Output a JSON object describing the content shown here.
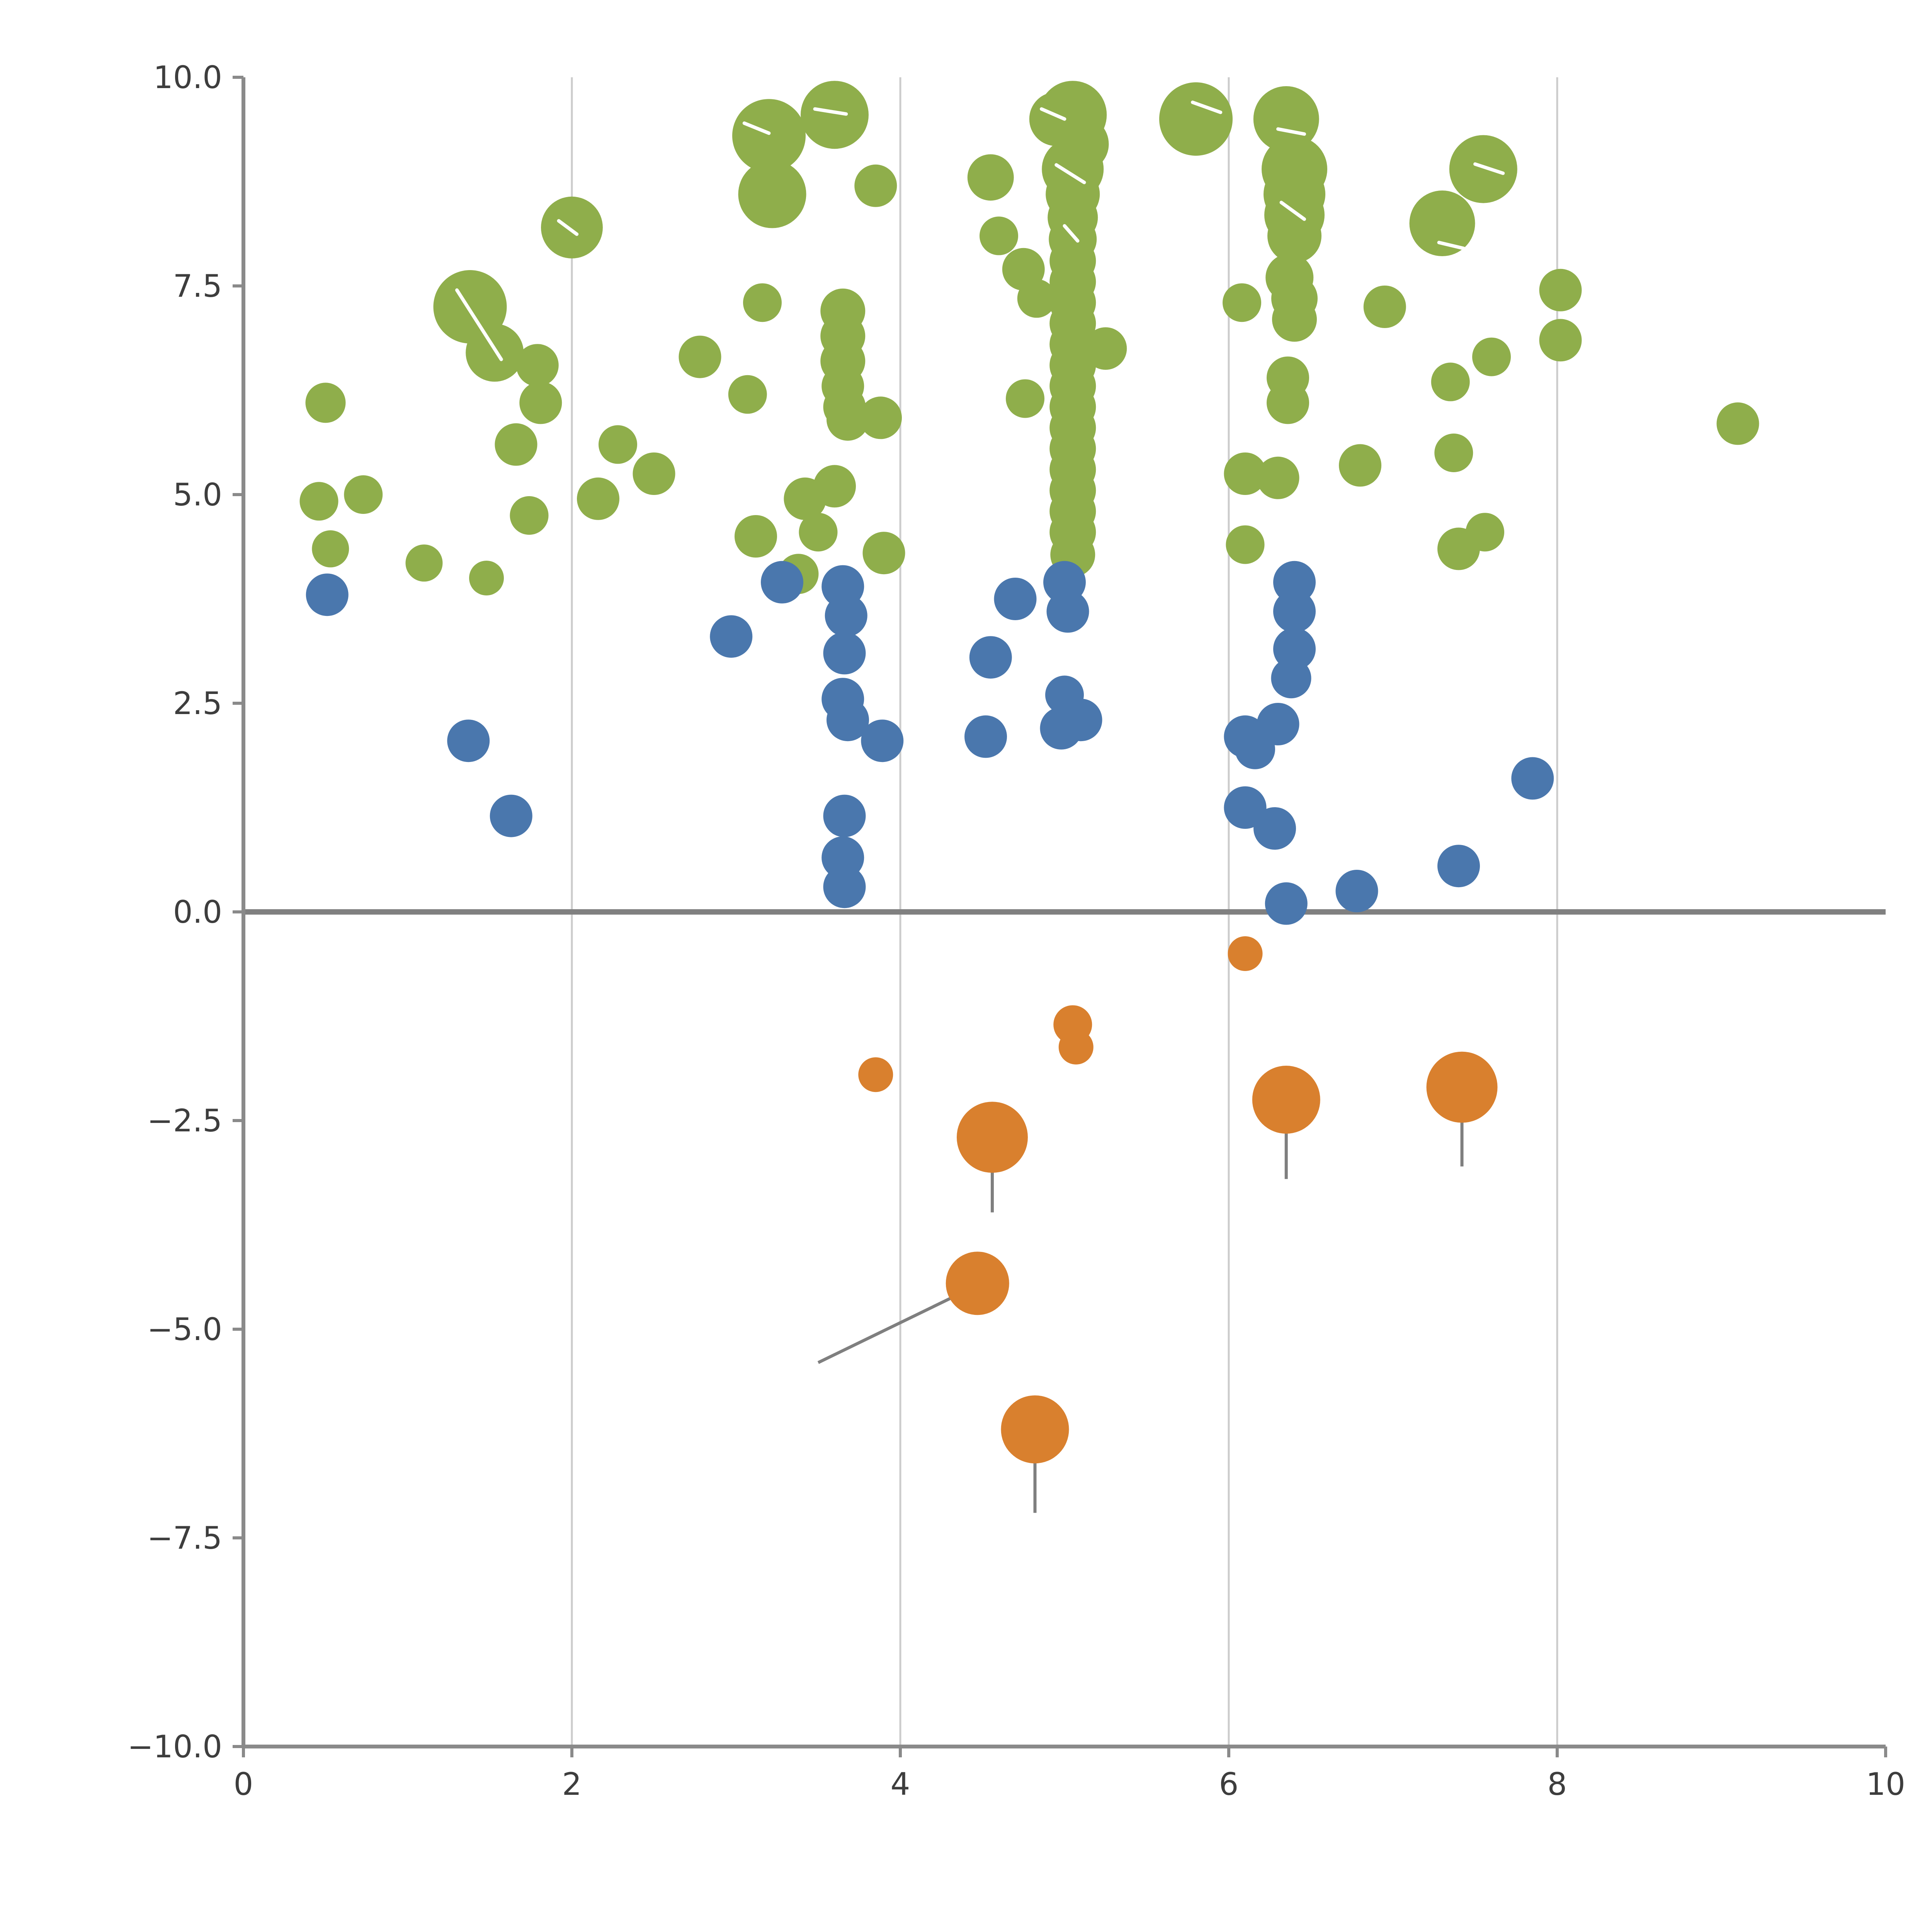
{
  "chart_data": {
    "type": "scatter",
    "title": "",
    "xlabel": "",
    "ylabel": "",
    "xlim": [
      0,
      10
    ],
    "ylim": [
      -10,
      10
    ],
    "x_tick_values": [
      0,
      2,
      4,
      6,
      8,
      10
    ],
    "x_tick_labels": [
      "0",
      "2",
      "4",
      "6",
      "8",
      "10"
    ],
    "y_tick_values": [
      -10,
      -7.5,
      -5,
      -2.5,
      0,
      2.5,
      5,
      7.5,
      10
    ],
    "y_tick_labels": [
      "−10.0",
      "−7.5",
      "−5.0",
      "−2.5",
      "0.0",
      "2.5",
      "5.0",
      "7.5",
      "10.0"
    ],
    "grid": {
      "vertical_at": [
        2,
        4,
        6,
        8
      ],
      "color": "#cccccc"
    },
    "zero_line": {
      "y": 0,
      "color": "#808080"
    },
    "axis_color": "#8a8a8a",
    "segment_color": "#7f7f7f",
    "white_mark_color": "#ffffff",
    "legend": null,
    "series": [
      {
        "name": "green",
        "color": "#8fae4b",
        "points": [
          [
            0.5,
            6.1,
            52
          ],
          [
            0.46,
            4.92,
            50
          ],
          [
            0.53,
            4.35,
            48
          ],
          [
            0.73,
            5.0,
            50
          ],
          [
            1.1,
            4.18,
            48
          ],
          [
            1.38,
            7.25,
            95
          ],
          [
            1.53,
            6.7,
            75
          ],
          [
            1.48,
            4.0,
            45
          ],
          [
            1.66,
            5.6,
            55
          ],
          [
            1.79,
            6.55,
            55
          ],
          [
            1.81,
            6.1,
            55
          ],
          [
            1.74,
            4.75,
            50
          ],
          [
            2.0,
            8.2,
            80
          ],
          [
            2.16,
            4.95,
            55
          ],
          [
            2.28,
            5.6,
            50
          ],
          [
            2.5,
            5.25,
            55
          ],
          [
            2.78,
            6.65,
            55
          ],
          [
            3.07,
            6.2,
            50
          ],
          [
            3.16,
            7.3,
            50
          ],
          [
            3.12,
            4.5,
            55
          ],
          [
            3.2,
            9.3,
            95
          ],
          [
            3.22,
            8.6,
            88
          ],
          [
            3.6,
            9.55,
            88
          ],
          [
            3.85,
            8.7,
            55
          ],
          [
            3.38,
            4.05,
            52
          ],
          [
            3.42,
            4.95,
            55
          ],
          [
            3.5,
            4.55,
            50
          ],
          [
            3.65,
            7.2,
            58
          ],
          [
            3.65,
            6.9,
            58
          ],
          [
            3.65,
            6.6,
            58
          ],
          [
            3.65,
            6.3,
            55
          ],
          [
            3.66,
            6.05,
            55
          ],
          [
            3.68,
            5.9,
            55
          ],
          [
            3.6,
            5.1,
            55
          ],
          [
            3.88,
            5.92,
            55
          ],
          [
            3.9,
            4.3,
            55
          ],
          [
            4.55,
            8.8,
            60
          ],
          [
            4.6,
            8.1,
            50
          ],
          [
            4.75,
            7.7,
            55
          ],
          [
            4.83,
            7.35,
            50
          ],
          [
            4.76,
            6.15,
            50
          ],
          [
            4.95,
            9.5,
            70
          ],
          [
            5.05,
            9.55,
            88
          ],
          [
            5.1,
            9.2,
            72
          ],
          [
            5.05,
            8.9,
            80
          ],
          [
            5.05,
            8.6,
            70
          ],
          [
            5.05,
            8.32,
            65
          ],
          [
            5.05,
            8.06,
            62
          ],
          [
            5.05,
            7.8,
            60
          ],
          [
            5.05,
            7.55,
            60
          ],
          [
            5.05,
            7.3,
            60
          ],
          [
            5.05,
            7.05,
            60
          ],
          [
            5.05,
            6.8,
            60
          ],
          [
            5.05,
            6.55,
            60
          ],
          [
            5.05,
            6.3,
            60
          ],
          [
            5.05,
            6.05,
            60
          ],
          [
            5.05,
            5.8,
            60
          ],
          [
            5.05,
            5.55,
            60
          ],
          [
            5.05,
            5.3,
            60
          ],
          [
            5.05,
            5.05,
            60
          ],
          [
            5.05,
            4.8,
            60
          ],
          [
            5.05,
            4.55,
            60
          ],
          [
            5.05,
            4.28,
            58
          ],
          [
            5.25,
            6.75,
            55
          ],
          [
            5.8,
            9.5,
            95
          ],
          [
            6.35,
            9.5,
            85
          ],
          [
            6.4,
            8.9,
            85
          ],
          [
            6.4,
            8.6,
            80
          ],
          [
            6.4,
            8.35,
            78
          ],
          [
            6.4,
            8.1,
            70
          ],
          [
            6.37,
            7.6,
            62
          ],
          [
            6.4,
            7.35,
            60
          ],
          [
            6.4,
            7.1,
            58
          ],
          [
            6.36,
            6.4,
            55
          ],
          [
            6.36,
            6.1,
            55
          ],
          [
            6.08,
            7.3,
            50
          ],
          [
            6.1,
            5.25,
            55
          ],
          [
            6.3,
            5.2,
            55
          ],
          [
            6.1,
            4.4,
            50
          ],
          [
            6.8,
            5.35,
            55
          ],
          [
            6.95,
            7.25,
            55
          ],
          [
            7.3,
            8.25,
            85
          ],
          [
            7.55,
            8.9,
            88
          ],
          [
            7.35,
            6.35,
            50
          ],
          [
            7.37,
            5.5,
            50
          ],
          [
            7.4,
            4.35,
            55
          ],
          [
            7.56,
            4.55,
            50
          ],
          [
            7.6,
            6.65,
            50
          ],
          [
            8.02,
            7.45,
            55
          ],
          [
            8.02,
            6.85,
            55
          ],
          [
            9.1,
            5.85,
            55
          ]
        ]
      },
      {
        "name": "blue",
        "color": "#4a77ad",
        "points": [
          [
            0.51,
            3.8,
            55
          ],
          [
            1.37,
            2.05,
            55
          ],
          [
            1.63,
            1.15,
            55
          ],
          [
            2.97,
            3.3,
            55
          ],
          [
            3.28,
            3.95,
            55
          ],
          [
            3.65,
            3.9,
            55
          ],
          [
            3.67,
            3.55,
            55
          ],
          [
            3.66,
            3.1,
            55
          ],
          [
            3.65,
            2.55,
            55
          ],
          [
            3.68,
            2.3,
            55
          ],
          [
            3.66,
            1.15,
            55
          ],
          [
            3.65,
            0.65,
            55
          ],
          [
            3.66,
            0.3,
            55
          ],
          [
            3.89,
            2.05,
            55
          ],
          [
            4.7,
            3.75,
            55
          ],
          [
            4.55,
            3.05,
            55
          ],
          [
            4.52,
            2.1,
            55
          ],
          [
            5.0,
            3.95,
            55
          ],
          [
            5.02,
            3.6,
            55
          ],
          [
            5.0,
            2.6,
            50
          ],
          [
            4.98,
            2.2,
            55
          ],
          [
            5.1,
            2.3,
            55
          ],
          [
            6.1,
            2.1,
            55
          ],
          [
            6.16,
            1.95,
            52
          ],
          [
            6.3,
            2.25,
            55
          ],
          [
            6.4,
            3.95,
            55
          ],
          [
            6.4,
            3.6,
            55
          ],
          [
            6.4,
            3.15,
            55
          ],
          [
            6.38,
            2.8,
            52
          ],
          [
            6.1,
            1.25,
            55
          ],
          [
            6.28,
            1.0,
            55
          ],
          [
            6.35,
            0.1,
            55
          ],
          [
            6.78,
            0.25,
            55
          ],
          [
            7.4,
            0.55,
            55
          ],
          [
            7.85,
            1.6,
            55
          ]
        ]
      },
      {
        "name": "orange",
        "color": "#d9802e",
        "points": [
          [
            6.1,
            -0.5,
            45
          ],
          [
            5.05,
            -1.35,
            50
          ],
          [
            5.07,
            -1.62,
            45
          ],
          [
            3.85,
            -1.95,
            45
          ],
          [
            4.56,
            -2.7,
            92
          ],
          [
            6.35,
            -2.25,
            88
          ],
          [
            7.42,
            -2.1,
            92
          ],
          [
            4.47,
            -4.45,
            82
          ],
          [
            4.82,
            -6.2,
            88
          ]
        ]
      }
    ],
    "segments": [
      [
        4.56,
        -2.95,
        4.56,
        -3.6
      ],
      [
        6.35,
        -2.45,
        6.35,
        -3.2
      ],
      [
        7.42,
        -2.35,
        7.42,
        -3.05
      ],
      [
        4.82,
        -6.45,
        4.82,
        -7.2
      ],
      [
        4.42,
        -4.52,
        3.5,
        -5.4
      ]
    ],
    "white_marks": [
      [
        1.3,
        7.45,
        1.57,
        6.62
      ],
      [
        1.92,
        8.28,
        2.03,
        8.12
      ],
      [
        3.05,
        9.45,
        3.2,
        9.33
      ],
      [
        3.48,
        9.62,
        3.67,
        9.56
      ],
      [
        4.86,
        9.62,
        5.0,
        9.5
      ],
      [
        4.95,
        8.95,
        5.12,
        8.74
      ],
      [
        5.0,
        8.22,
        5.08,
        8.04
      ],
      [
        5.78,
        9.7,
        5.95,
        9.58
      ],
      [
        6.3,
        9.38,
        6.46,
        9.32
      ],
      [
        6.32,
        8.5,
        6.46,
        8.3
      ],
      [
        7.5,
        8.96,
        7.67,
        8.85
      ],
      [
        7.28,
        8.02,
        7.43,
        7.95
      ],
      [
        3.63,
        7.95,
        3.72,
        7.78
      ]
    ]
  }
}
